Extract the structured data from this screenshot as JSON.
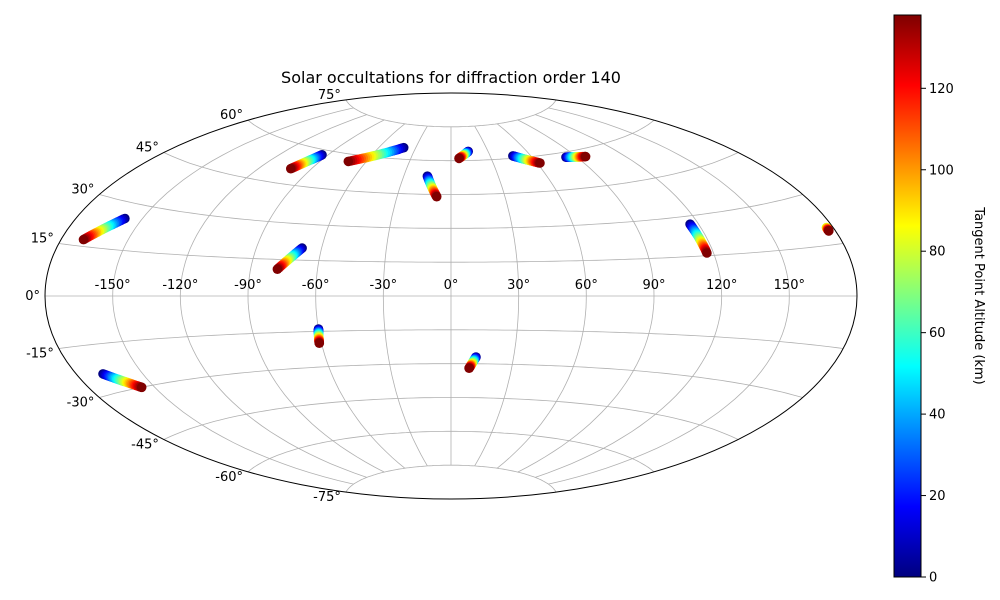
{
  "chart_data": {
    "type": "scatter",
    "projection": "aitoff",
    "title": "Solar occultations for diffraction order 140",
    "xlabel": "",
    "ylabel": "",
    "lon_ticks": [
      "-150°",
      "-120°",
      "-90°",
      "-60°",
      "-30°",
      "0°",
      "30°",
      "60°",
      "90°",
      "120°",
      "150°"
    ],
    "lon_tick_values": [
      -150,
      -120,
      -90,
      -60,
      -30,
      0,
      30,
      60,
      90,
      120,
      150
    ],
    "lat_ticks": [
      "-75°",
      "-60°",
      "-45°",
      "-30°",
      "-15°",
      "0°",
      "15°",
      "30°",
      "45°",
      "60°",
      "75°"
    ],
    "lat_tick_values": [
      -75,
      -60,
      -45,
      -30,
      -15,
      0,
      15,
      30,
      45,
      60,
      75
    ],
    "grid": true,
    "colorbar": {
      "label": "Tangent Point Altitude (km)",
      "min": 0,
      "max": 138,
      "ticks": [
        0,
        20,
        40,
        60,
        80,
        100,
        120
      ],
      "colormap": "jet"
    },
    "series": [
      {
        "values": [
          {
            "lon": -158,
            "lat": 25,
            "alt": 0
          },
          {
            "lon": -170,
            "lat": 17,
            "alt": 138
          }
        ]
      },
      {
        "values": [
          {
            "lon": -94,
            "lat": 58,
            "alt": 0
          },
          {
            "lon": -102,
            "lat": 51,
            "alt": 138
          }
        ]
      },
      {
        "lon_start": -40,
        "values": [
          {
            "lon": -40,
            "lat": 65,
            "alt": 0
          },
          {
            "lon": -72,
            "lat": 57,
            "alt": 138
          }
        ]
      },
      {
        "values": [
          {
            "lon": -69,
            "lat": 20,
            "alt": 0
          },
          {
            "lon": -78,
            "lat": 11,
            "alt": 138
          }
        ]
      },
      {
        "values": [
          {
            "lon": -15,
            "lat": 53,
            "alt": 0
          },
          {
            "lon": -8,
            "lat": 44,
            "alt": 138
          }
        ]
      },
      {
        "values": [
          {
            "lon": 14,
            "lat": 64,
            "alt": 0
          },
          {
            "lon": 6,
            "lat": 61,
            "alt": 138
          }
        ]
      },
      {
        "values": [
          {
            "lon": 47,
            "lat": 61,
            "alt": 0
          },
          {
            "lon": 62,
            "lat": 57,
            "alt": 138
          }
        ]
      },
      {
        "values": [
          {
            "lon": 83,
            "lat": 58,
            "alt": 0
          },
          {
            "lon": 96,
            "lat": 57,
            "alt": 138
          }
        ]
      },
      {
        "values": [
          {
            "lon": 116,
            "lat": 27,
            "alt": 0
          },
          {
            "lon": 117,
            "lat": 16,
            "alt": 138
          }
        ]
      },
      {
        "values": [
          {
            "lon": 177,
            "lat": 20,
            "alt": 80
          },
          {
            "lon": 177,
            "lat": 19,
            "alt": 138
          }
        ]
      },
      {
        "values": [
          {
            "lon": -60,
            "lat": -14,
            "alt": 0
          },
          {
            "lon": -61,
            "lat": -20,
            "alt": 138
          }
        ]
      },
      {
        "values": [
          {
            "lon": 12,
            "lat": -27,
            "alt": 0
          },
          {
            "lon": 9,
            "lat": -32,
            "alt": 138
          }
        ]
      },
      {
        "values": [
          {
            "lon": -168,
            "lat": -24,
            "alt": 0
          },
          {
            "lon": -156,
            "lat": -30,
            "alt": 138
          }
        ]
      }
    ]
  }
}
